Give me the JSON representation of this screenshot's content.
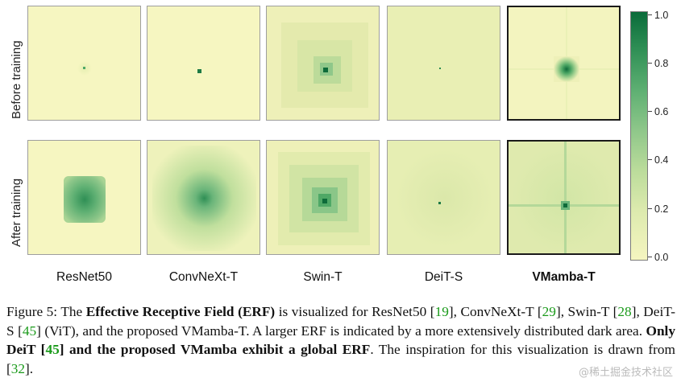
{
  "figure": {
    "row_labels": [
      "Before training",
      "After training"
    ],
    "columns": [
      "ResNet50",
      "ConvNeXt-T",
      "Swin-T",
      "DeiT-S",
      "VMamba-T"
    ],
    "highlight_column": "VMamba-T",
    "colorbar": {
      "ticks": [
        "1.0",
        "0.8",
        "0.6",
        "0.4",
        "0.2",
        "0.0"
      ],
      "color_low": "#f5f5c0",
      "color_high": "#0a6b3a"
    }
  },
  "caption": {
    "label": "Figure 5:",
    "t1": " The ",
    "b1": "Effective Receptive Field (ERF)",
    "t2": " is visualized for ResNet50 [",
    "r1": "19",
    "t3": "], ConvNeXt-T [",
    "r2": "29",
    "t4": "], Swin-T [",
    "r3": "28",
    "t5": "], DeiT-S [",
    "r4": "45",
    "t6": "] (ViT), and the proposed VMamba-T. A larger ERF is indicated by a more extensively distributed dark area. ",
    "b2": "Only DeiT [",
    "r5": "45",
    "b3": "] and the proposed VMamba exhibit a global ERF",
    "t7": ". The inspiration for this visualization is drawn from [",
    "r6": "32",
    "t8": "]."
  },
  "watermark": "@稀土掘金技术社区"
}
